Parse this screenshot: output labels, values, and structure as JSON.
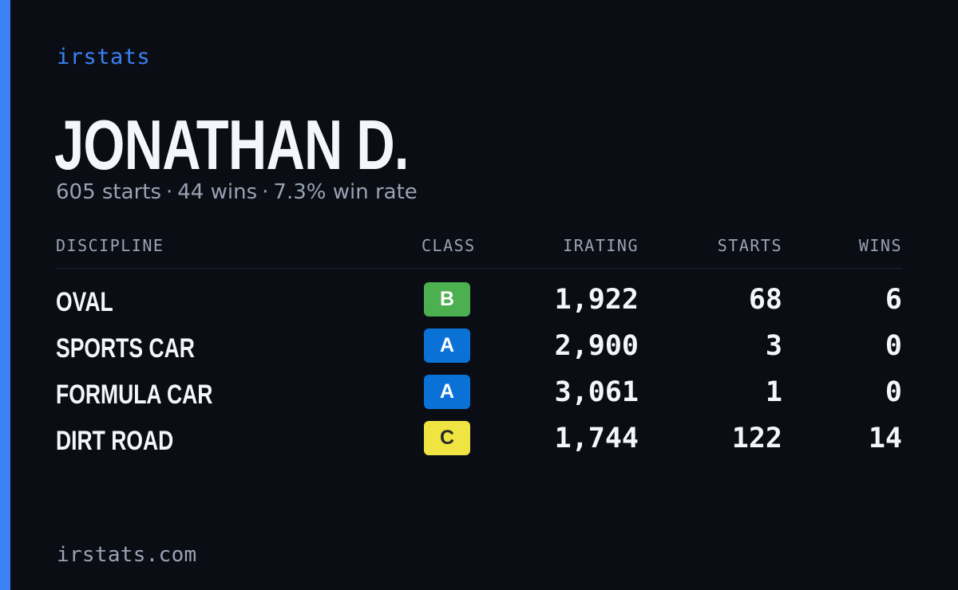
{
  "brand": "irstats",
  "player": {
    "name": "JONATHAN D.",
    "starts": "605 starts",
    "wins": "44 wins",
    "win_rate": "7.3% win rate",
    "separator": "·"
  },
  "table": {
    "headers": {
      "discipline": "DISCIPLINE",
      "class": "CLASS",
      "irating": "IRATING",
      "starts": "STARTS",
      "wins": "WINS"
    },
    "rows": [
      {
        "discipline": "OVAL",
        "class": "B",
        "class_color": "#4caf50",
        "class_text_color": "#ffffff",
        "irating": "1,922",
        "starts": "68",
        "wins": "6"
      },
      {
        "discipline": "SPORTS CAR",
        "class": "A",
        "class_color": "#0a72d6",
        "class_text_color": "#ffffff",
        "irating": "2,900",
        "starts": "3",
        "wins": "0"
      },
      {
        "discipline": "FORMULA CAR",
        "class": "A",
        "class_color": "#0a72d6",
        "class_text_color": "#ffffff",
        "irating": "3,061",
        "starts": "1",
        "wins": "0"
      },
      {
        "discipline": "DIRT ROAD",
        "class": "C",
        "class_color": "#f0e442",
        "class_text_color": "#2a2a2a",
        "irating": "1,744",
        "starts": "122",
        "wins": "14"
      }
    ]
  },
  "footer": "irstats.com",
  "colors": {
    "accent": "#3b82f6",
    "background": "#0a0d14",
    "muted": "#99a2b3"
  }
}
